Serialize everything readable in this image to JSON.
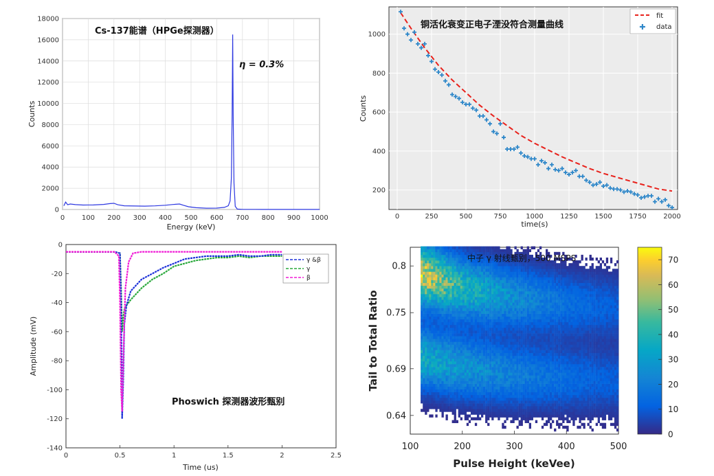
{
  "chart_data": [
    {
      "type": "line",
      "title": "Cs-137能谱（HPGe探测器）",
      "annotation": "η = 0.3%",
      "xlabel": "Energy (keV)",
      "ylabel": "Counts",
      "xlim": [
        0,
        1000
      ],
      "ylim": [
        0,
        18000
      ],
      "grid": true,
      "xticks": [
        "0",
        "100",
        "200",
        "300",
        "400",
        "500",
        "600",
        "700",
        "800",
        "900",
        "1000"
      ],
      "yticks": [
        "0",
        "2000",
        "4000",
        "6000",
        "8000",
        "10000",
        "12000",
        "14000",
        "16000",
        "18000"
      ],
      "x": [
        5,
        12,
        20,
        30,
        50,
        80,
        120,
        160,
        185,
        200,
        215,
        240,
        280,
        320,
        360,
        400,
        430,
        455,
        470,
        490,
        520,
        560,
        600,
        630,
        645,
        652,
        657,
        660,
        662,
        664,
        667,
        672,
        680,
        700,
        750,
        800,
        850,
        900,
        950,
        1000
      ],
      "y": [
        350,
        700,
        450,
        520,
        460,
        420,
        430,
        480,
        560,
        580,
        450,
        350,
        330,
        320,
        340,
        400,
        470,
        520,
        400,
        260,
        170,
        120,
        130,
        200,
        350,
        800,
        3000,
        9000,
        16500,
        9000,
        2500,
        300,
        40,
        15,
        10,
        8,
        8,
        6,
        5,
        4
      ]
    },
    {
      "type": "scatter",
      "title": "铜活化衰变正电子湮没符合测量曲线",
      "xlabel": "time(s)",
      "ylabel": "Counts",
      "xlim": [
        -60,
        2040
      ],
      "ylim": [
        100,
        1140
      ],
      "grid": true,
      "xticks": [
        "0",
        "250",
        "500",
        "750",
        "1000",
        "1250",
        "1500",
        "1750",
        "2000"
      ],
      "yticks": [
        "200",
        "400",
        "600",
        "800",
        "1000"
      ],
      "legend_position": "top-right",
      "series": [
        {
          "name": "fit",
          "x": [
            25,
            100,
            200,
            300,
            400,
            500,
            600,
            700,
            800,
            900,
            1000,
            1100,
            1200,
            1300,
            1400,
            1500,
            1600,
            1700,
            1800,
            1900,
            2000
          ],
          "y": [
            1110,
            1030,
            930,
            840,
            765,
            700,
            635,
            580,
            530,
            480,
            440,
            405,
            370,
            340,
            310,
            285,
            265,
            245,
            225,
            205,
            195
          ]
        },
        {
          "name": "data",
          "x": [
            25,
            50,
            75,
            100,
            125,
            150,
            175,
            200,
            225,
            250,
            275,
            300,
            325,
            350,
            375,
            400,
            425,
            450,
            475,
            500,
            525,
            550,
            575,
            600,
            625,
            650,
            675,
            700,
            725,
            750,
            775,
            800,
            825,
            850,
            875,
            900,
            925,
            950,
            975,
            1000,
            1025,
            1050,
            1075,
            1100,
            1125,
            1150,
            1175,
            1200,
            1225,
            1250,
            1275,
            1300,
            1325,
            1350,
            1375,
            1400,
            1425,
            1450,
            1475,
            1500,
            1525,
            1550,
            1575,
            1600,
            1625,
            1650,
            1675,
            1700,
            1725,
            1750,
            1775,
            1800,
            1825,
            1850,
            1875,
            1900,
            1925,
            1950,
            1975,
            2000
          ],
          "y": [
            1115,
            1030,
            1000,
            970,
            1010,
            950,
            930,
            950,
            890,
            860,
            820,
            805,
            790,
            760,
            740,
            690,
            680,
            670,
            650,
            640,
            640,
            620,
            610,
            580,
            580,
            560,
            540,
            500,
            490,
            540,
            470,
            410,
            410,
            410,
            420,
            390,
            375,
            370,
            360,
            360,
            330,
            350,
            340,
            310,
            330,
            305,
            300,
            310,
            290,
            280,
            290,
            300,
            270,
            270,
            250,
            240,
            225,
            230,
            240,
            220,
            225,
            210,
            205,
            205,
            200,
            190,
            195,
            190,
            180,
            175,
            160,
            165,
            170,
            170,
            140,
            155,
            140,
            150,
            120,
            110
          ]
        }
      ]
    },
    {
      "type": "line",
      "title": "Phoswich 探测器波形甄别",
      "xlabel": "Time (us)",
      "ylabel": "Amplitude (mV)",
      "xlim": [
        0,
        2.5
      ],
      "ylim": [
        -140,
        0
      ],
      "grid": false,
      "xticks": [
        "0",
        "0.5",
        "1",
        "1.5",
        "2",
        "2.5"
      ],
      "yticks": [
        "0",
        "-20",
        "-40",
        "-60",
        "-80",
        "-100",
        "-120",
        "-140"
      ],
      "legend_position": "top-right",
      "series": [
        {
          "name": "γ &β",
          "x": [
            0,
            0.2,
            0.45,
            0.5,
            0.51,
            0.52,
            0.53,
            0.54,
            0.56,
            0.6,
            0.7,
            0.8,
            0.9,
            1.0,
            1.1,
            1.2,
            1.3,
            1.4,
            1.5,
            1.6,
            1.7,
            1.8,
            1.9,
            2.0
          ],
          "y": [
            -5,
            -5,
            -5,
            -6,
            -40,
            -120,
            -95,
            -55,
            -42,
            -32,
            -24,
            -20,
            -16,
            -13,
            -10,
            -9,
            -8,
            -8,
            -8,
            -7,
            -8,
            -8,
            -7,
            -7
          ]
        },
        {
          "name": "γ",
          "x": [
            0,
            0.2,
            0.45,
            0.5,
            0.51,
            0.52,
            0.53,
            0.54,
            0.56,
            0.6,
            0.7,
            0.8,
            0.9,
            1.0,
            1.1,
            1.2,
            1.3,
            1.4,
            1.5,
            1.6,
            1.7,
            1.8,
            1.9,
            2.0
          ],
          "y": [
            -5,
            -5,
            -5,
            -6,
            -30,
            -60,
            -50,
            -45,
            -42,
            -38,
            -30,
            -24,
            -20,
            -15,
            -13,
            -11,
            -10,
            -9,
            -9,
            -8,
            -9,
            -8,
            -8,
            -8
          ]
        },
        {
          "name": "β",
          "x": [
            0,
            0.2,
            0.45,
            0.49,
            0.5,
            0.51,
            0.52,
            0.53,
            0.55,
            0.58,
            0.62,
            0.7,
            0.8,
            1.0,
            1.2,
            1.5,
            1.8,
            2.0
          ],
          "y": [
            -5,
            -5,
            -5,
            -8,
            -40,
            -100,
            -115,
            -80,
            -30,
            -12,
            -6,
            -5,
            -5,
            -5,
            -5,
            -5,
            -5,
            -5
          ]
        }
      ]
    },
    {
      "type": "heatmap",
      "title": "中子 γ 射线甄别，500 MSPS",
      "xlabel": "Pulse Height (keVee)",
      "ylabel": "Tail to Total Ratio",
      "xlim": [
        100,
        500
      ],
      "ylim": [
        0.62,
        0.82
      ],
      "xticks": [
        "100",
        "200",
        "300",
        "400",
        "500"
      ],
      "yticks": [
        "0.8",
        "0.75",
        "0.69",
        "0.64"
      ],
      "ytick_values": [
        0.8,
        0.75,
        0.69,
        0.64
      ],
      "colorbar": {
        "min": 0,
        "max": 75,
        "ticks": [
          "0",
          "10",
          "20",
          "30",
          "40",
          "50",
          "60",
          "70"
        ],
        "colormap": "parula"
      },
      "bands": [
        {
          "label_hint": "upper",
          "center_at_x": [
            [
              120,
              0.79
            ],
            [
              200,
              0.775
            ],
            [
              300,
              0.765
            ],
            [
              400,
              0.758
            ],
            [
              500,
              0.754
            ]
          ],
          "peak_counts": [
            65,
            40,
            25,
            15,
            10
          ]
        },
        {
          "label_hint": "lower",
          "center_at_x": [
            [
              120,
              0.7
            ],
            [
              200,
              0.69
            ],
            [
              300,
              0.682
            ],
            [
              400,
              0.678
            ],
            [
              500,
              0.675
            ]
          ],
          "peak_counts": [
            35,
            28,
            20,
            14,
            10
          ]
        }
      ]
    }
  ]
}
